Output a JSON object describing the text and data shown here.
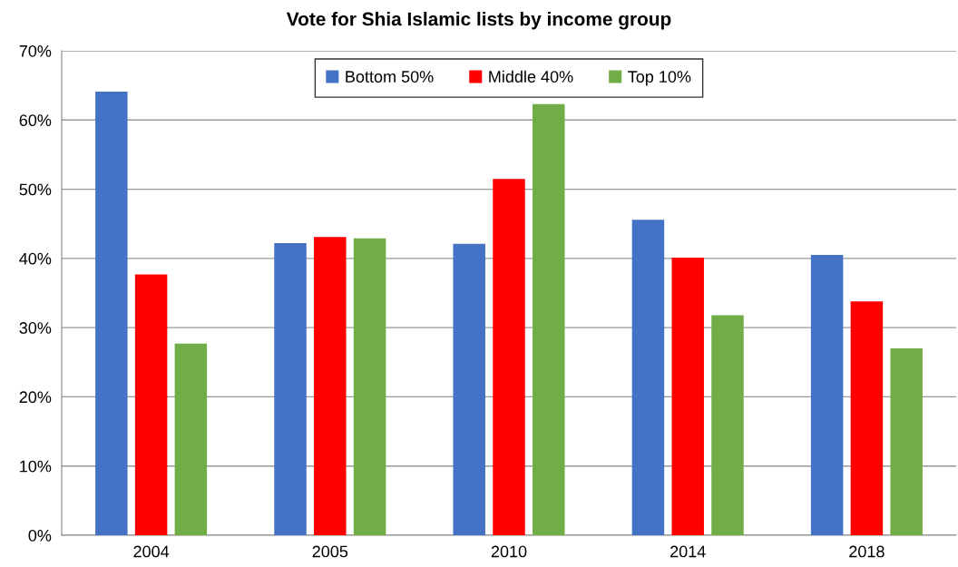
{
  "chart_data": {
    "type": "bar",
    "title": "Vote for Shia Islamic lists by income group",
    "categories": [
      "2004",
      "2005",
      "2010",
      "2014",
      "2018"
    ],
    "series": [
      {
        "name": "Bottom 50%",
        "color": "#4472c4",
        "values": [
          64.1,
          42.2,
          42.1,
          45.6,
          40.5
        ]
      },
      {
        "name": "Middle 40%",
        "color": "#ff0000",
        "values": [
          37.7,
          43.1,
          51.5,
          40.1,
          33.8
        ]
      },
      {
        "name": "Top 10%",
        "color": "#70ad47",
        "values": [
          27.7,
          42.9,
          62.3,
          31.8,
          27.0
        ]
      }
    ],
    "ylim": [
      0,
      70
    ],
    "yticks": [
      {
        "value": 0,
        "label": "0%"
      },
      {
        "value": 10,
        "label": "10%"
      },
      {
        "value": 20,
        "label": "20%"
      },
      {
        "value": 30,
        "label": "30%"
      },
      {
        "value": 40,
        "label": "40%"
      },
      {
        "value": 50,
        "label": "50%"
      },
      {
        "value": 60,
        "label": "60%"
      },
      {
        "value": 70,
        "label": "70%"
      }
    ],
    "grid": "y",
    "legend": "top"
  }
}
